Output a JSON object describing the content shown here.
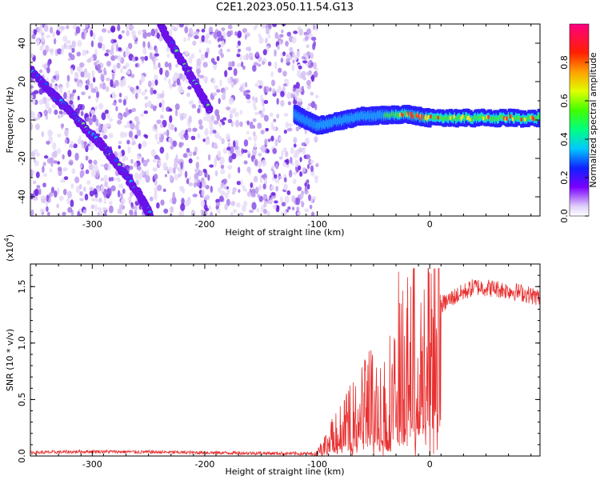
{
  "title": "C2E1.2023.050.11.54.G13",
  "colors": {
    "spectrum_low": "#c9a8f0",
    "spectrum_mid": "#5a00e0",
    "signal": "#e83030",
    "axis": "#000000"
  },
  "chart_data": [
    {
      "type": "heatmap",
      "xlabel": "Height of straight line (km)",
      "ylabel": "Frequency (Hz)",
      "xlim": [
        -355,
        98
      ],
      "ylim": [
        -50,
        50
      ],
      "xticks": [
        -300,
        -200,
        -100,
        0
      ],
      "yticks": [
        -40,
        -20,
        0,
        20,
        40
      ],
      "colorbar": {
        "label": "Normalized spectral amplitude",
        "range": [
          0.0,
          1.0
        ],
        "ticks": [
          "0.0",
          "0.2",
          "0.4",
          "0.6",
          "0.8"
        ]
      },
      "features": [
        {
          "name": "",
          "x": [
            -355,
            -320,
            -290,
            -260,
            -248
          ],
          "y": [
            26,
            4,
            -14,
            -37,
            -50
          ]
        },
        {
          "name": "",
          "x": [
            -240,
            -215,
            -195
          ],
          "y": [
            50,
            25,
            5
          ]
        },
        {
          "name": "",
          "x": [
            -120,
            -100,
            -60,
            -20,
            0,
            98
          ],
          "y": [
            3,
            -3,
            2,
            3,
            1,
            1
          ]
        }
      ]
    },
    {
      "type": "line",
      "xlabel": "Height of straight line (km)",
      "ylabel": "SNR (10 * v/v)",
      "y_scale_label": "(x10",
      "y_scale_exp": "4",
      "y_scale_close": ")",
      "xlim": [
        -355,
        98
      ],
      "ylim": [
        0,
        1.7
      ],
      "xticks": [
        -300,
        -200,
        -100,
        0
      ],
      "yticks": [
        "0.0",
        "0.5",
        "1.0",
        "1.5"
      ],
      "series": [
        {
          "name": "",
          "x": [
            -355,
            -300,
            -250,
            -200,
            -150,
            -105,
            -95,
            -85,
            -75,
            -65,
            -55,
            -45,
            -35,
            -25,
            -15,
            -5,
            5,
            20,
            40,
            60,
            80,
            98
          ],
          "y": [
            0.03,
            0.04,
            0.035,
            0.03,
            0.025,
            0.02,
            0.08,
            0.2,
            0.28,
            0.4,
            0.55,
            0.45,
            0.6,
            0.75,
            0.95,
            1.08,
            1.3,
            1.4,
            1.5,
            1.48,
            1.45,
            1.4
          ]
        }
      ]
    }
  ]
}
